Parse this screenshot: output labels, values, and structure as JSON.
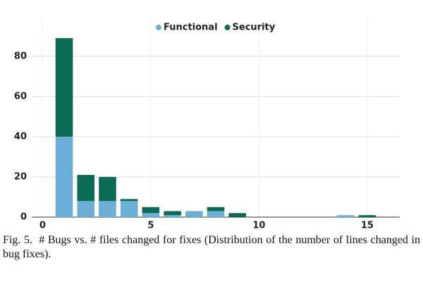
{
  "chart_data": {
    "type": "stacked_bar",
    "x": [
      1,
      2,
      3,
      4,
      5,
      6,
      7,
      8,
      9,
      14,
      15
    ],
    "series": [
      {
        "name": "Functional",
        "color": "#6baed6",
        "values": [
          40,
          8,
          8,
          8,
          2,
          1,
          3,
          3,
          0,
          1,
          0
        ]
      },
      {
        "name": "Security",
        "color": "#0b6b57",
        "values": [
          49,
          13,
          12,
          1,
          3,
          2,
          0,
          2,
          2,
          0,
          1
        ]
      }
    ],
    "xlim": [
      -0.5,
      16.5
    ],
    "xticks": [
      0,
      5,
      10,
      15
    ],
    "ylim": [
      0,
      95
    ],
    "yticks": [
      0,
      20,
      40,
      60,
      80
    ],
    "grid": true,
    "legend": "top",
    "caption": "Fig. 5.  # Bugs vs. # files changed for fixes (Distribution of the number of lines changed in bug fixes)."
  }
}
